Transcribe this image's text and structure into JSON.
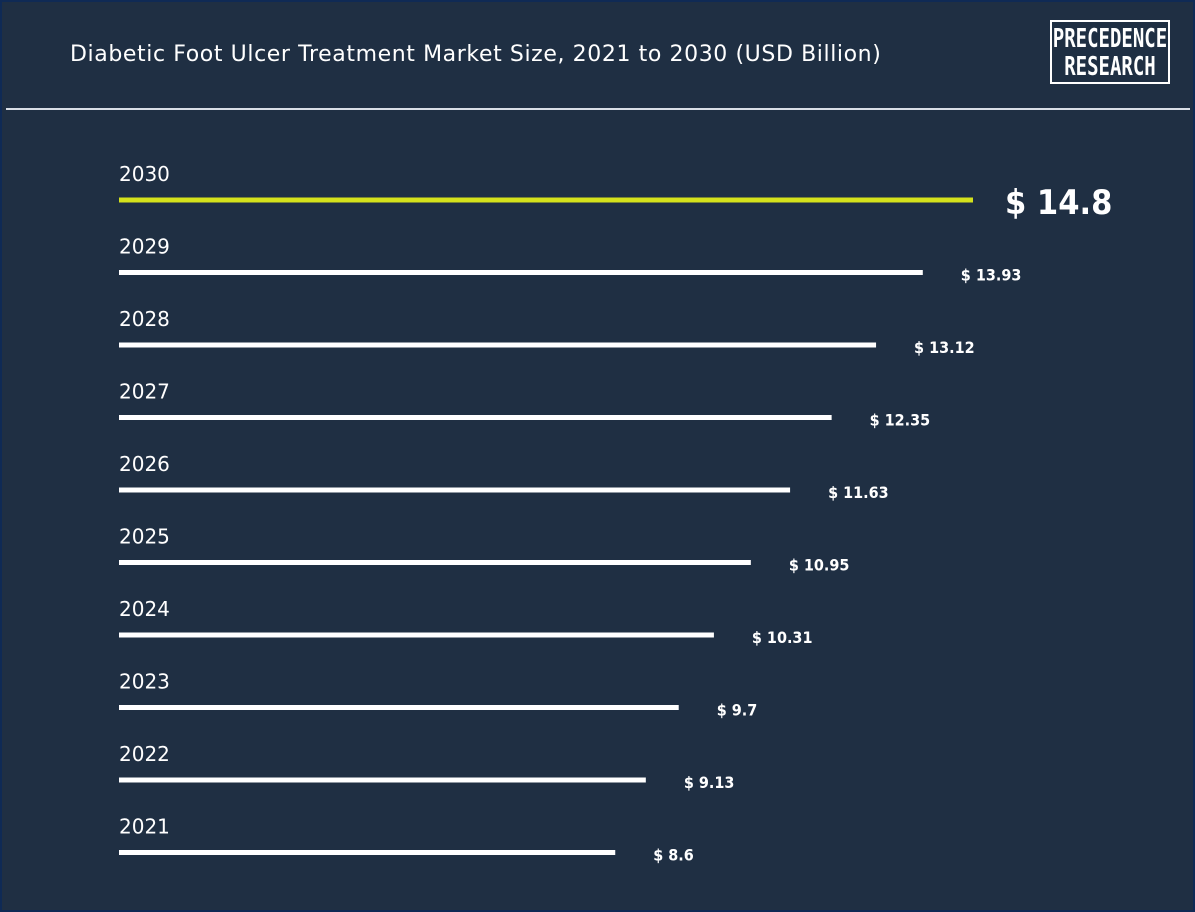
{
  "header": {
    "title": "Diabetic Foot Ulcer Treatment Market Size, 2021 to 2030 (USD Billion)",
    "logo_line1": "PRECEDENCE",
    "logo_line2": "RESEARCH"
  },
  "colors": {
    "background": "#1f2f43",
    "bar": "#ffffff",
    "highlight": "#d4e21c"
  },
  "chart_data": {
    "type": "bar",
    "orientation": "horizontal",
    "title": "Diabetic Foot Ulcer Treatment Market Size, 2021 to 2030 (USD Billion)",
    "categories": [
      "2030",
      "2029",
      "2028",
      "2027",
      "2026",
      "2025",
      "2024",
      "2023",
      "2022",
      "2021"
    ],
    "values": [
      14.8,
      13.93,
      13.12,
      12.35,
      11.63,
      10.95,
      10.31,
      9.7,
      9.13,
      8.6
    ],
    "value_labels": [
      "$ 14.8",
      "$ 13.93",
      "$ 13.12",
      "$ 12.35",
      "$ 11.63",
      "$ 10.95",
      "$ 10.31",
      "$ 9.7",
      "$ 9.13",
      "$ 8.6"
    ],
    "highlight_category": "2030",
    "xlabel": "",
    "ylabel": "",
    "grid": false,
    "legend": "none"
  }
}
